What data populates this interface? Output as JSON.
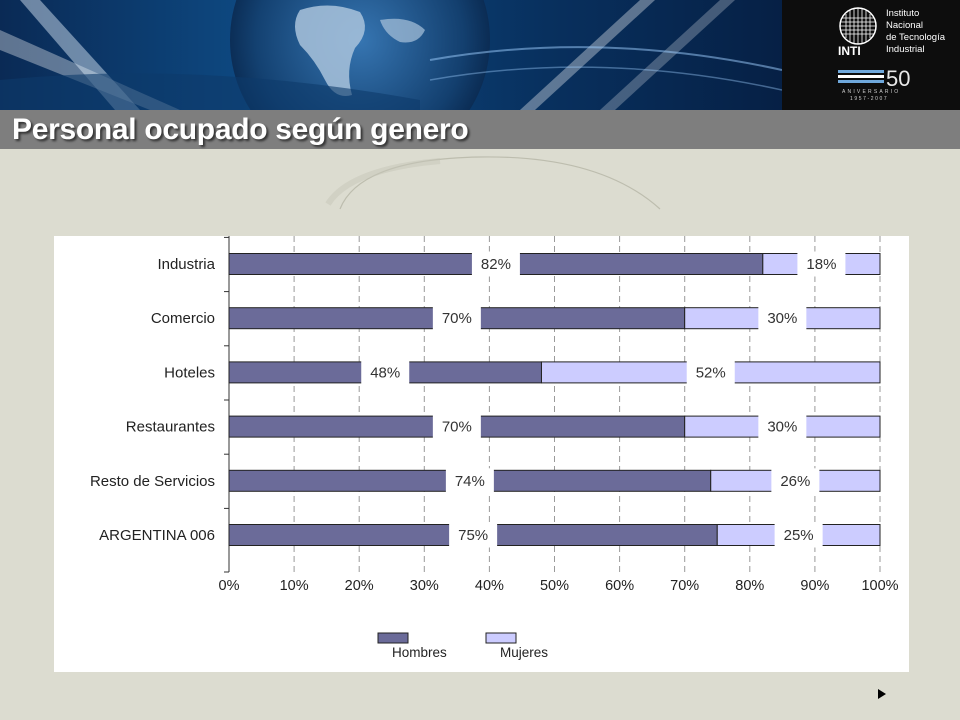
{
  "slide": {
    "title": "Personal ocupado según genero"
  },
  "logo": {
    "institute_text": "Instituto\nNacional\nde Tecnología\nIndustrial",
    "acronym": "INTI",
    "anniversary_number": "50",
    "anniversary_label": "ANIVERSARIO",
    "anniversary_years": "1957-2007"
  },
  "icons": {
    "next": "next-slide-arrow-icon"
  },
  "colors": {
    "hombres": "#6b6b99",
    "mujeres": "#ccccff",
    "title_bar": "#7e7e7e",
    "background": "#dcdcd0"
  },
  "chart_data": {
    "type": "bar",
    "orientation": "horizontal",
    "stacked": true,
    "categories": [
      "Industria",
      "Comercio",
      "Hoteles",
      "Restaurantes",
      "Resto de Servicios",
      "ARGENTINA 006"
    ],
    "series": [
      {
        "name": "Hombres",
        "values": [
          82,
          70,
          48,
          70,
          74,
          75
        ],
        "labels": [
          "82%",
          "70%",
          "48%",
          "70%",
          "74%",
          "75%"
        ]
      },
      {
        "name": "Mujeres",
        "values": [
          18,
          30,
          52,
          30,
          26,
          25
        ],
        "labels": [
          "18%",
          "30%",
          "52%",
          "30%",
          "26%",
          "25%"
        ]
      }
    ],
    "x_ticks": [
      "0%",
      "10%",
      "20%",
      "30%",
      "40%",
      "50%",
      "60%",
      "70%",
      "80%",
      "90%",
      "100%"
    ],
    "xlim": [
      0,
      100
    ],
    "grid": "vertical dashed",
    "legend_position": "bottom"
  }
}
